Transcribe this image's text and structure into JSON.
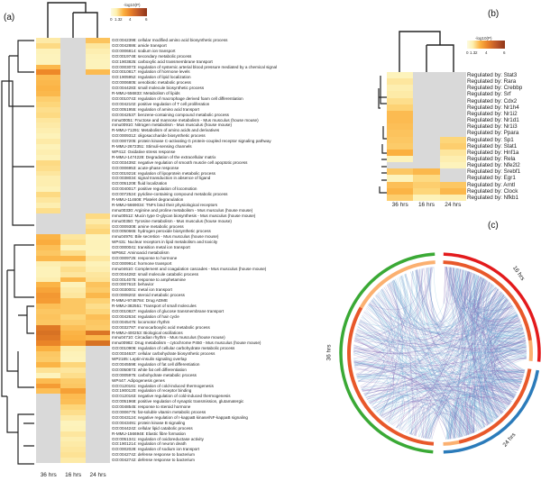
{
  "chart_data": [
    {
      "type": "heatmap",
      "panel": "(a)",
      "columns": [
        "36 hrs",
        "16 hrs",
        "24 hrs"
      ],
      "legend": {
        "title": "-log10(P)",
        "ticks": [
          "0",
          "1.3",
          "2",
          "4",
          "6"
        ]
      },
      "rows": [
        {
          "label": "GO:0042398: cellular modified amino acid biosynthetic process",
          "values": [
            1.5,
            null,
            2.5
          ]
        },
        {
          "label": "GO:0042886: amide transport",
          "values": [
            1.9,
            null,
            1.6
          ]
        },
        {
          "label": "GO:0006814: sodium ion transport",
          "values": [
            1.3,
            null,
            1.4
          ]
        },
        {
          "label": "GO:0019748: secondary metabolic process",
          "values": [
            1.2,
            null,
            1.3
          ]
        },
        {
          "label": "GO:1903825: carboxylic acid transmembrane transport",
          "values": [
            1.2,
            null,
            1.2
          ]
        },
        {
          "label": "GO:0003073: regulation of systemic arterial blood pressure mediated by a chemical signal",
          "values": [
            2.8,
            null,
            1.2
          ]
        },
        {
          "label": "GO:0010817: regulation of hormone levels",
          "values": [
            4.0,
            null,
            2.7
          ]
        },
        {
          "label": "GO:1905952: regulation of lipid localization",
          "values": [
            2.7,
            null,
            null
          ]
        },
        {
          "label": "GO:0006805: xenobiotic metabolic process",
          "values": [
            2.8,
            null,
            null
          ]
        },
        {
          "label": "GO:0044283: small molecule biosynthetic process",
          "values": [
            2.9,
            null,
            null
          ]
        },
        {
          "label": "R-MMU-556833: Metabolism of lipids",
          "values": [
            2.8,
            null,
            null
          ]
        },
        {
          "label": "GO:0010743: regulation of macrophage derived foam cell differentiation",
          "values": [
            2.2,
            null,
            null
          ]
        },
        {
          "label": "GO:0042102: positive regulation of T cell proliferation",
          "values": [
            2.0,
            null,
            null
          ]
        },
        {
          "label": "GO:0051955: regulation of amino acid transport",
          "values": [
            1.8,
            null,
            null
          ]
        },
        {
          "label": "GO:0042537: benzene-containing compound metabolic process",
          "values": [
            1.9,
            null,
            null
          ]
        },
        {
          "label": "mmu00051: Fructose and mannose metabolism - Mus musculus (house mouse)",
          "values": [
            1.6,
            null,
            null
          ]
        },
        {
          "label": "mmu00910: Nitrogen metabolism - Mus musculus (house mouse)",
          "values": [
            1.5,
            null,
            null
          ]
        },
        {
          "label": "R-MMU-71291: Metabolism of amino acids and derivatives",
          "values": [
            1.4,
            null,
            null
          ]
        },
        {
          "label": "GO:0009312: oligosaccharide biosynthetic process",
          "values": [
            1.3,
            null,
            null
          ]
        },
        {
          "label": "GO:0007205: protein kinase C-activating G protein-coupled receptor signaling pathway",
          "values": [
            1.5,
            null,
            null
          ]
        },
        {
          "label": "R-MMU-2672351: Stimuli-sensing channels",
          "values": [
            1.3,
            null,
            null
          ]
        },
        {
          "label": "WP412: Oxidative stress response",
          "values": [
            1.4,
            null,
            null
          ]
        },
        {
          "label": "R-MMU-1474228: Degradation of the extracellular matrix",
          "values": [
            1.3,
            null,
            null
          ]
        },
        {
          "label": "GO:0034392: negative regulation of smooth muscle cell apoptotic process",
          "values": [
            1.9,
            null,
            null
          ]
        },
        {
          "label": "GO:0006953: acute-phase response",
          "values": [
            1.8,
            null,
            null
          ]
        },
        {
          "label": "GO:0019216: regulation of lipoprotein metabolic process",
          "values": [
            1.6,
            null,
            null
          ]
        },
        {
          "label": "GO:0038034: signal transduction in absence of ligand",
          "values": [
            1.4,
            null,
            null
          ]
        },
        {
          "label": "GO:0051208: fluid localization",
          "values": [
            1.4,
            null,
            null
          ]
        },
        {
          "label": "GO:0040017: positive regulation of locomotion",
          "values": [
            1.3,
            null,
            null
          ]
        },
        {
          "label": "GO:0072524: pyridine-containing compound metabolic process",
          "values": [
            1.9,
            null,
            null
          ]
        },
        {
          "label": "R-MMU-114608: Platelet degranulation",
          "values": [
            1.6,
            null,
            null
          ]
        },
        {
          "label": "R-MMU-5669034: TNFs bind their physiological receptors",
          "values": [
            1.4,
            null,
            null
          ]
        },
        {
          "label": "mmu00330: Arginine and proline metabolism - Mus musculus (house mouse)",
          "values": [
            1.8,
            null,
            null
          ]
        },
        {
          "label": "mmu00512: Mucin type O-glycan biosynthesis - Mus musculus (house mouse)",
          "values": [
            null,
            null,
            1.9
          ]
        },
        {
          "label": "mmu00350: Tyrosine metabolism - Mus musculus (house mouse)",
          "values": [
            null,
            null,
            1.5
          ]
        },
        {
          "label": "GO:0009308: amine metabolic process",
          "values": [
            null,
            null,
            1.8
          ]
        },
        {
          "label": "GO:0050665: hydrogen peroxide biosynthetic process",
          "values": [
            null,
            null,
            2.0
          ]
        },
        {
          "label": "mmu04976: Bile secretion - Mus musculus (house mouse)",
          "values": [
            2.9,
            1.6,
            1.2
          ]
        },
        {
          "label": "WP431: Nuclear receptors in lipid metabolism and toxicity",
          "values": [
            3.1,
            1.8,
            1.3
          ]
        },
        {
          "label": "GO:0000041: transition metal ion transport",
          "values": [
            2.6,
            1.3,
            1.3
          ]
        },
        {
          "label": "WP662: Aminoacid metabolism",
          "values": [
            2.4,
            1.8,
            1.2
          ]
        },
        {
          "label": "GO:0009725: response to hormone",
          "values": [
            2.8,
            2.8,
            1.6
          ]
        },
        {
          "label": "GO:0009914: hormone transport",
          "values": [
            1.4,
            1.5,
            1.3
          ]
        },
        {
          "label": "mmu04610: Complement and coagulation cascades - Mus musculus (house mouse)",
          "values": [
            1.3,
            1.8,
            1.4
          ]
        },
        {
          "label": "GO:0044282: small molecule catabolic process",
          "values": [
            1.3,
            1.6,
            1.6
          ]
        },
        {
          "label": "GO:0014075: response to amphetamine",
          "values": [
            1.4,
            2.8,
            1.7
          ]
        },
        {
          "label": "GO:0007610: behavior",
          "values": [
            2.9,
            1.3,
            2.5
          ]
        },
        {
          "label": "GO:0030001: metal ion transport",
          "values": [
            3.3,
            1.5,
            2.3
          ]
        },
        {
          "label": "GO:0008202: steroid metabolic process",
          "values": [
            3.6,
            1.6,
            2.8
          ]
        },
        {
          "label": "R-MMU-9748784: Drug ADME",
          "values": [
            3.5,
            2.4,
            2.1
          ]
        },
        {
          "label": "R-MMU-382551: Transport of small molecules",
          "values": [
            2.6,
            2.4,
            1.8
          ]
        },
        {
          "label": "GO:0010827: regulation of glucose transmembrane transport",
          "values": [
            2.4,
            2.4,
            2.0
          ]
        },
        {
          "label": "GO:0042634: regulation of hair cycle",
          "values": [
            2.5,
            2.0,
            2.6
          ]
        },
        {
          "label": "GO:0045475: locomotor rhythm",
          "values": [
            2.4,
            2.2,
            2.4
          ]
        },
        {
          "label": "GO:0032787: monocarboxylic acid metabolic process",
          "values": [
            4.4,
            2.6,
            2.3
          ]
        },
        {
          "label": "R-MMU-400253: Biological oscillations",
          "values": [
            4.6,
            2.9,
            4.5
          ]
        },
        {
          "label": "mmu04710: Circadian rhythm - Mus musculus (house mouse)",
          "values": [
            4.4,
            3.0,
            2.8
          ]
        },
        {
          "label": "mmu00982: Drug metabolism - cytochrome P450 - Mus musculus (house mouse)",
          "values": [
            4.1,
            3.3,
            4.6
          ]
        },
        {
          "label": "GO:0010906: regulation of cellular carbohydrate metabolic process",
          "values": [
            3.0,
            1.4,
            null
          ]
        },
        {
          "label": "GO:0034637: cellular carbohydrate biosynthetic process",
          "values": [
            2.4,
            1.3,
            null
          ]
        },
        {
          "label": "WP2185: Leptin-insulin signaling overlap",
          "values": [
            2.3,
            1.2,
            null
          ]
        },
        {
          "label": "GO:0045598: regulation of fat cell differentiation",
          "values": [
            2.9,
            2.0,
            null
          ]
        },
        {
          "label": "GO:0050873: white fat cell differentiation",
          "values": [
            1.7,
            1.6,
            null
          ]
        },
        {
          "label": "GO:0005975: carbohydrate metabolic process",
          "values": [
            1.2,
            1.8,
            null
          ]
        },
        {
          "label": "WP447: Adipogenesis genes",
          "values": [
            2.7,
            2.3,
            null
          ]
        },
        {
          "label": "GO:0120161: regulation of cold-induced thermogenesis",
          "values": [
            3.5,
            2.4,
            null
          ]
        },
        {
          "label": "GO:1900120: regulation of receptor binding",
          "values": [
            2.6,
            3.4,
            null
          ]
        },
        {
          "label": "GO:0120163: negative regulation of cold-induced thermogenesis",
          "values": [
            null,
            2.7,
            null
          ]
        },
        {
          "label": "GO:0051968: positive regulation of synaptic transmission, glutamatergic",
          "values": [
            null,
            2.6,
            null
          ]
        },
        {
          "label": "GO:0048545: response to steroid hormone",
          "values": [
            null,
            2.0,
            null
          ]
        },
        {
          "label": "GO:0006775: fat-soluble vitamin metabolic process",
          "values": [
            null,
            1.8,
            null
          ]
        },
        {
          "label": "GO:0043124: negative regulation of I-kappaB kinase/NF-kappaB signaling",
          "values": [
            null,
            1.5,
            null
          ]
        },
        {
          "label": "GO:0043491: protein kinase B signaling",
          "values": [
            null,
            1.2,
            null
          ]
        },
        {
          "label": "GO:0044242: cellular lipid catabolic process",
          "values": [
            null,
            1.3,
            null
          ]
        },
        {
          "label": "R-MMU-1566948: Elastic fibre formation",
          "values": [
            null,
            1.6,
            null
          ]
        },
        {
          "label": "GO:0051341: regulation of oxidoreductase activity",
          "values": [
            null,
            1.4,
            null
          ]
        },
        {
          "label": "GO:1901214: regulation of neuron death",
          "values": [
            null,
            1.5,
            null
          ]
        },
        {
          "label": "GO:0002028: regulation of sodium ion transport",
          "values": [
            null,
            1.6,
            null
          ]
        },
        {
          "label": "GO:0042742: defense response to bacterium",
          "values": [
            null,
            1.7,
            null
          ]
        },
        {
          "label": "GO:0042742: defense response to bacterium",
          "values": [
            null,
            1.5,
            null
          ]
        }
      ]
    },
    {
      "type": "heatmap",
      "panel": "(b)",
      "columns": [
        "36 hrs",
        "16 hrs",
        "24 hrs"
      ],
      "legend": {
        "title": "-log10(P)",
        "ticks": [
          "0",
          "1.3",
          "2",
          "4",
          "6"
        ]
      },
      "rows": [
        {
          "label": "Regulated by: Stat3",
          "values": [
            1.2,
            null,
            null
          ]
        },
        {
          "label": "Regulated by: Rara",
          "values": [
            1.6,
            null,
            null
          ]
        },
        {
          "label": "Regulated by: Crebbp",
          "values": [
            1.4,
            null,
            null
          ]
        },
        {
          "label": "Regulated by: Srf",
          "values": [
            1.5,
            null,
            null
          ]
        },
        {
          "label": "Regulated by: Cdx2",
          "values": [
            1.8,
            null,
            null
          ]
        },
        {
          "label": "Regulated by: Nr1h4",
          "values": [
            2.1,
            null,
            null
          ]
        },
        {
          "label": "Regulated by: Nr1i2",
          "values": [
            2.7,
            null,
            null
          ]
        },
        {
          "label": "Regulated by: Nr1d1",
          "values": [
            2.7,
            null,
            null
          ]
        },
        {
          "label": "Regulated by: Nr1i3",
          "values": [
            2.6,
            null,
            null
          ]
        },
        {
          "label": "Regulated by: Ppara",
          "values": [
            2.5,
            null,
            null
          ]
        },
        {
          "label": "Regulated by: Sp1",
          "values": [
            2.4,
            null,
            2.0
          ]
        },
        {
          "label": "Regulated by: Stat1",
          "values": [
            2.3,
            null,
            2.2
          ]
        },
        {
          "label": "Regulated by: Hnf1a",
          "values": [
            3.0,
            null,
            1.6
          ]
        },
        {
          "label": "Regulated by: Rela",
          "values": [
            1.3,
            null,
            1.4
          ]
        },
        {
          "label": "Regulated by: Nfe2l2",
          "values": [
            null,
            null,
            1.2
          ]
        },
        {
          "label": "Regulated by: Srebf1",
          "values": [
            2.4,
            2.8,
            null
          ]
        },
        {
          "label": "Regulated by: Egr1",
          "values": [
            1.2,
            1.9,
            null
          ]
        },
        {
          "label": "Regulated by: Arntl",
          "values": [
            2.6,
            2.2,
            2.4
          ]
        },
        {
          "label": "Regulated by: Clock",
          "values": [
            2.9,
            2.0,
            2.8
          ]
        },
        {
          "label": "Regulated by: Nfkb1",
          "values": [
            2.2,
            1.3,
            1.4
          ]
        }
      ]
    },
    {
      "type": "chord",
      "panel": "(c)",
      "segments": [
        {
          "label": "16 hrs",
          "color": "#e31a1c"
        },
        {
          "label": "24 hrs",
          "color": "#2b7bba"
        },
        {
          "label": "36 hrs",
          "color": "#3aa935"
        }
      ],
      "inner_colors": {
        "shared": "#e8582a",
        "unique": "#fbb070"
      },
      "link_colors": [
        "#6baed6",
        "#7a5fb0"
      ]
    }
  ],
  "panels": {
    "a": "(a)",
    "b": "(b)",
    "c": "(c)"
  },
  "gray_color": "#d9d9d9"
}
